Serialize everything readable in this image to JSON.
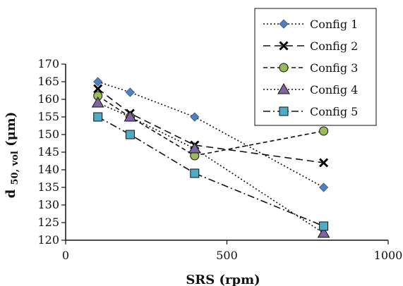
{
  "chart_data": {
    "type": "line",
    "title": "",
    "xlabel": "SRS (rpm)",
    "ylabel_main": "d",
    "ylabel_sub": "50, vol",
    "ylabel_unit": " (μm)",
    "xlim": [
      0,
      1000
    ],
    "ylim": [
      120,
      170
    ],
    "xticks": [
      0,
      500,
      1000
    ],
    "yticks": [
      120,
      125,
      130,
      135,
      140,
      145,
      150,
      155,
      160,
      165,
      170
    ],
    "grid": false,
    "legend": "top-right",
    "series": [
      {
        "name": "Config 1",
        "x": [
          100,
          200,
          400,
          800
        ],
        "y": [
          165,
          162,
          155,
          135
        ],
        "color": "#4f81bd",
        "marker": "diamond",
        "line_style": "dotted"
      },
      {
        "name": "Config 2",
        "x": [
          100,
          200,
          400,
          800
        ],
        "y": [
          163,
          156,
          147,
          142
        ],
        "color": "#000000",
        "marker": "x",
        "line_style": "dashed"
      },
      {
        "name": "Config 3",
        "x": [
          100,
          200,
          400,
          800
        ],
        "y": [
          161,
          155,
          144,
          151
        ],
        "color": "#9bbb59",
        "marker": "circle",
        "line_style": "short-dashed"
      },
      {
        "name": "Config 4",
        "x": [
          100,
          200,
          400,
          800
        ],
        "y": [
          159,
          155,
          146,
          122
        ],
        "color": "#8064a2",
        "marker": "triangle",
        "line_style": "dotted"
      },
      {
        "name": "Config 5",
        "x": [
          100,
          200,
          400,
          800
        ],
        "y": [
          155,
          150,
          139,
          124
        ],
        "color": "#4bacc6",
        "marker": "square",
        "line_style": "dash-dot"
      }
    ]
  }
}
